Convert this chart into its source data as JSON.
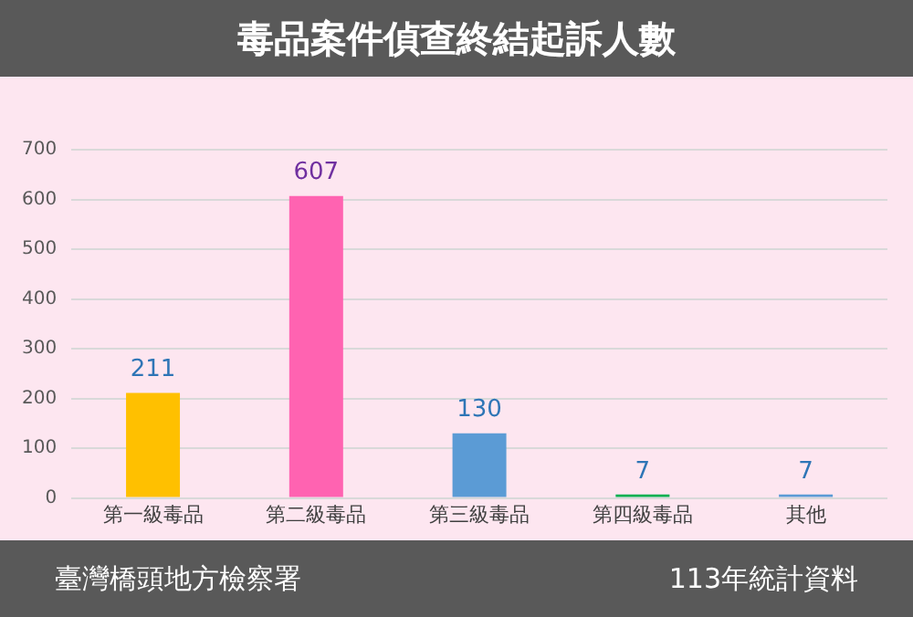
{
  "chart_data": {
    "type": "bar",
    "title": "毒品案件偵查終結起訴人數",
    "categories": [
      "第一級毒品",
      "第二級毒品",
      "第三級毒品",
      "第四級毒品",
      "其他"
    ],
    "values": [
      211,
      607,
      130,
      7,
      7
    ],
    "colors": [
      "#ffc000",
      "#ff63b1",
      "#5b9bd5",
      "#00b050",
      "#5b9bd5"
    ],
    "ylim": [
      0,
      700
    ],
    "yticks": [
      0,
      100,
      200,
      300,
      400,
      500,
      600,
      700
    ],
    "grid": "y",
    "data_labels": true,
    "legend": false,
    "annotations": [
      "臺灣橋頭地方檢察署",
      "113年統計資料"
    ]
  }
}
